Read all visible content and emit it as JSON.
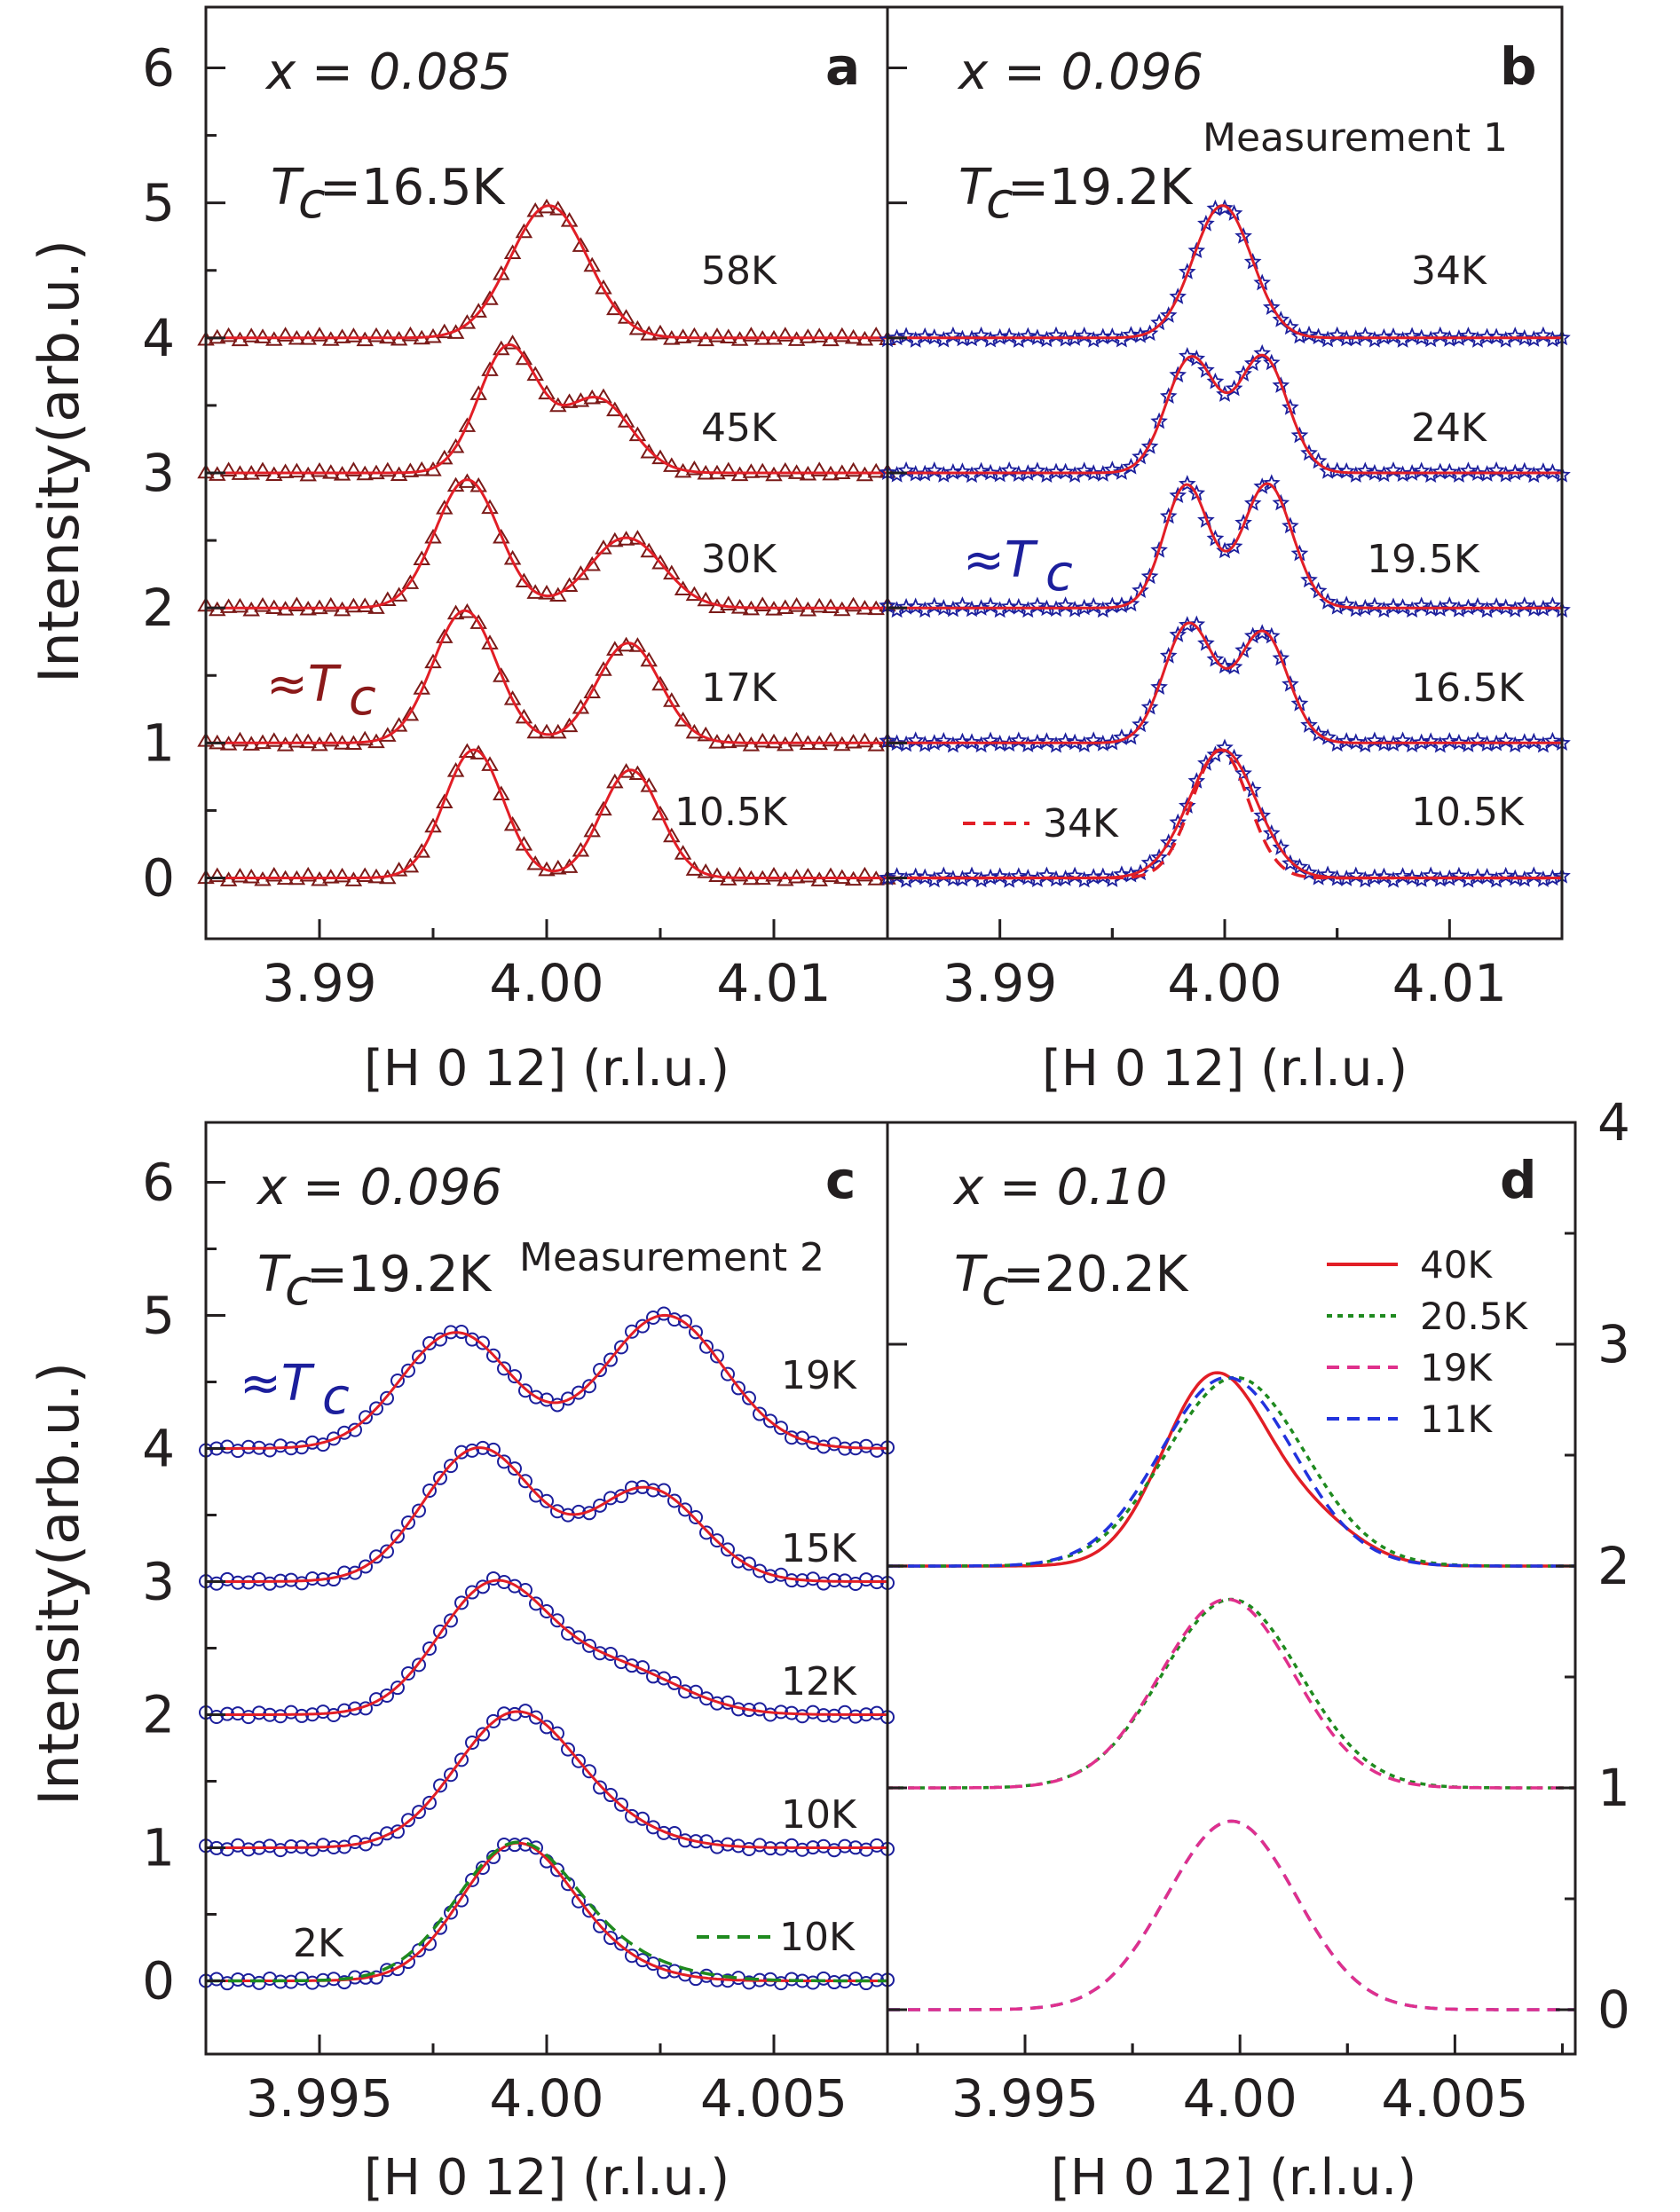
{
  "colors": {
    "fit_red": "#e21e26",
    "marker_darkred": "#7a1a18",
    "marker_blue": "#1c1f9c",
    "tc_darkred": "#8b1a1a",
    "tc_blue": "#1c1f9c",
    "green": "#1f8a1f",
    "magenta": "#e0308c",
    "dash_blue": "#2233dd",
    "axis": "#231f20"
  },
  "chart_data": [
    {
      "panel": "a",
      "type": "line",
      "composition": "x = 0.085",
      "tc_label": "=16.5K",
      "approx_tc_label": "≈T",
      "ylabel": "Intensity(arb.u.)",
      "xlabel": "[H 0 12] (r.l.u.)",
      "xlim": [
        3.985,
        4.015
      ],
      "ylim": [
        -0.45,
        6.45
      ],
      "xticks": [
        3.99,
        4.0,
        4.01
      ],
      "xtick_labels": [
        "3.99",
        "4.00",
        "4.01"
      ],
      "yticks": [
        0,
        1,
        2,
        3,
        4,
        5,
        6
      ],
      "ytick_labels": [
        "0",
        "1",
        "2",
        "3",
        "4",
        "5",
        "6"
      ],
      "marker": "triangle",
      "series": [
        {
          "name": "10.5K",
          "offset": 0,
          "peaks": [
            {
              "center": 3.9968,
              "amp": 0.95,
              "width": 0.0013
            },
            {
              "center": 4.0037,
              "amp": 0.8,
              "width": 0.0013
            }
          ]
        },
        {
          "name": "17K",
          "offset": 1,
          "peaks": [
            {
              "center": 3.9964,
              "amp": 0.98,
              "width": 0.0014
            },
            {
              "center": 4.0036,
              "amp": 0.74,
              "width": 0.0014
            }
          ]
        },
        {
          "name": "30K",
          "offset": 2,
          "peaks": [
            {
              "center": 3.9965,
              "amp": 0.95,
              "width": 0.0014
            },
            {
              "center": 4.0035,
              "amp": 0.52,
              "width": 0.0016
            }
          ]
        },
        {
          "name": "45K",
          "offset": 3,
          "peaks": [
            {
              "center": 3.9983,
              "amp": 0.93,
              "width": 0.0013
            },
            {
              "center": 4.0022,
              "amp": 0.55,
              "width": 0.0015
            }
          ]
        },
        {
          "name": "58K",
          "offset": 4,
          "peaks": [
            {
              "center": 4.0001,
              "amp": 0.98,
              "width": 0.0017
            }
          ]
        }
      ]
    },
    {
      "panel": "b",
      "type": "line",
      "composition": "x = 0.096",
      "tc_label": "=19.2K",
      "approx_tc_label": "≈T",
      "measurement": "Measurement 1",
      "xlabel": "[H 0 12] (r.l.u.)",
      "xlim": [
        3.985,
        4.015
      ],
      "ylim": [
        -0.45,
        6.45
      ],
      "xticks": [
        3.99,
        4.0,
        4.01
      ],
      "xtick_labels": [
        "3.99",
        "4.00",
        "4.01"
      ],
      "marker": "star",
      "series": [
        {
          "name": "10.5K",
          "offset": 0,
          "peaks": [
            {
              "center": 3.9999,
              "amp": 0.95,
              "width": 0.0015
            }
          ]
        },
        {
          "name": "16.5K",
          "offset": 1,
          "peaks": [
            {
              "center": 3.9984,
              "amp": 0.88,
              "width": 0.0011
            },
            {
              "center": 4.0017,
              "amp": 0.82,
              "width": 0.0011
            }
          ]
        },
        {
          "name": "19.5K",
          "offset": 2,
          "peaks": [
            {
              "center": 3.9983,
              "amp": 0.91,
              "width": 0.001
            },
            {
              "center": 4.0019,
              "amp": 0.92,
              "width": 0.0011
            }
          ]
        },
        {
          "name": "24K",
          "offset": 3,
          "peaks": [
            {
              "center": 3.9985,
              "amp": 0.85,
              "width": 0.0011
            },
            {
              "center": 4.0017,
              "amp": 0.86,
              "width": 0.0011
            }
          ]
        },
        {
          "name": "34K",
          "offset": 4,
          "peaks": [
            {
              "center": 3.9999,
              "amp": 0.98,
              "width": 0.0013
            }
          ]
        }
      ],
      "reference_curve": {
        "name": "34K",
        "style": "red dashed",
        "offset": 0,
        "peaks": [
          {
            "center": 3.9998,
            "amp": 0.95,
            "width": 0.00125
          }
        ]
      }
    },
    {
      "panel": "c",
      "type": "line",
      "composition": "x = 0.096",
      "tc_label": "=19.2K",
      "approx_tc_label": "≈T",
      "measurement": "Measurement 2",
      "ylabel": "Intensity(arb.u.)",
      "xlabel": "[H 0 12] (r.l.u.)",
      "xlim": [
        3.9925,
        4.0075
      ],
      "ylim": [
        -0.55,
        6.45
      ],
      "xticks": [
        3.995,
        4.0,
        4.005
      ],
      "xtick_labels": [
        "3.995",
        "4.00",
        "4.005"
      ],
      "yticks": [
        0,
        1,
        2,
        3,
        4,
        5,
        6
      ],
      "ytick_labels": [
        "0",
        "1",
        "2",
        "3",
        "4",
        "5",
        "6"
      ],
      "marker": "circle",
      "series": [
        {
          "name": "2K",
          "offset": 0,
          "peaks": [
            {
              "center": 3.9993,
              "amp": 1.0,
              "width": 0.0012
            },
            {
              "center": 4.0012,
              "amp": 0.12,
              "width": 0.0012
            }
          ]
        },
        {
          "name": "10K",
          "offset": 1,
          "peaks": [
            {
              "center": 3.9993,
              "amp": 1.0,
              "width": 0.0013
            },
            {
              "center": 4.0015,
              "amp": 0.12,
              "width": 0.0012
            }
          ]
        },
        {
          "name": "12K",
          "offset": 2,
          "peaks": [
            {
              "center": 3.9988,
              "amp": 0.95,
              "width": 0.0012
            },
            {
              "center": 4.0015,
              "amp": 0.35,
              "width": 0.0014
            }
          ]
        },
        {
          "name": "15K",
          "offset": 3,
          "peaks": [
            {
              "center": 3.9985,
              "amp": 1.0,
              "width": 0.0012
            },
            {
              "center": 4.0022,
              "amp": 0.7,
              "width": 0.0012
            }
          ]
        },
        {
          "name": "19K",
          "offset": 4,
          "peaks": [
            {
              "center": 3.998,
              "amp": 0.87,
              "width": 0.0012
            },
            {
              "center": 4.0026,
              "amp": 1.0,
              "width": 0.0013
            }
          ]
        }
      ],
      "reference_curve": {
        "name": "10K",
        "style": "green dashed",
        "offset": 0,
        "peaks": [
          {
            "center": 3.9993,
            "amp": 1.0,
            "width": 0.0013
          },
          {
            "center": 4.0015,
            "amp": 0.14,
            "width": 0.0014
          }
        ]
      }
    },
    {
      "panel": "d",
      "type": "line",
      "composition": "x = 0.10",
      "tc_label": "=20.2K",
      "xlabel": "[H 0 12] (r.l.u.)",
      "xlim": [
        3.9918,
        4.0078
      ],
      "ylim": [
        -0.2,
        4.0
      ],
      "xticks": [
        3.995,
        4.0,
        4.005
      ],
      "xtick_labels": [
        "3.995",
        "4.00",
        "4.005"
      ],
      "yticks_right": [
        0,
        1,
        2,
        3,
        4
      ],
      "ytick_labels_right": [
        "0",
        "1",
        "2",
        "3",
        "4"
      ],
      "legend": [
        "40K",
        "20.5K",
        "19K",
        "11K"
      ],
      "groups": [
        {
          "offset": 2,
          "curves": [
            {
              "name": "40K",
              "style": "red solid",
              "peaks": [
                {
                  "center": 3.9994,
                  "amp": 0.85,
                  "width": 0.0012
                },
                {
                  "center": 4.0017,
                  "amp": 0.18,
                  "width": 0.0011
                }
              ]
            },
            {
              "name": "20.5K",
              "style": "green dotted",
              "peaks": [
                {
                  "center": 3.9999,
                  "amp": 0.85,
                  "width": 0.0016
                }
              ]
            },
            {
              "name": "11K",
              "style": "blue dashed",
              "peaks": [
                {
                  "center": 3.9997,
                  "amp": 0.85,
                  "width": 0.00155
                }
              ]
            }
          ]
        },
        {
          "offset": 1,
          "curves": [
            {
              "name": "20.5K",
              "style": "green dotted",
              "peaks": [
                {
                  "center": 3.9998,
                  "amp": 0.85,
                  "width": 0.0016
                }
              ]
            },
            {
              "name": "19K",
              "style": "magenta dashed",
              "peaks": [
                {
                  "center": 3.9997,
                  "amp": 0.85,
                  "width": 0.00155
                }
              ]
            }
          ]
        },
        {
          "offset": 0,
          "curves": [
            {
              "name": "11K",
              "style": "blue dashed",
              "peaks": [
                {
                  "center": 3.9998,
                  "amp": 0.85,
                  "width": 0.0015
                }
              ]
            },
            {
              "name": "19K",
              "style": "magenta dashed",
              "peaks": [
                {
                  "center": 3.9998,
                  "amp": 0.85,
                  "width": 0.0015
                }
              ]
            }
          ]
        }
      ]
    }
  ]
}
